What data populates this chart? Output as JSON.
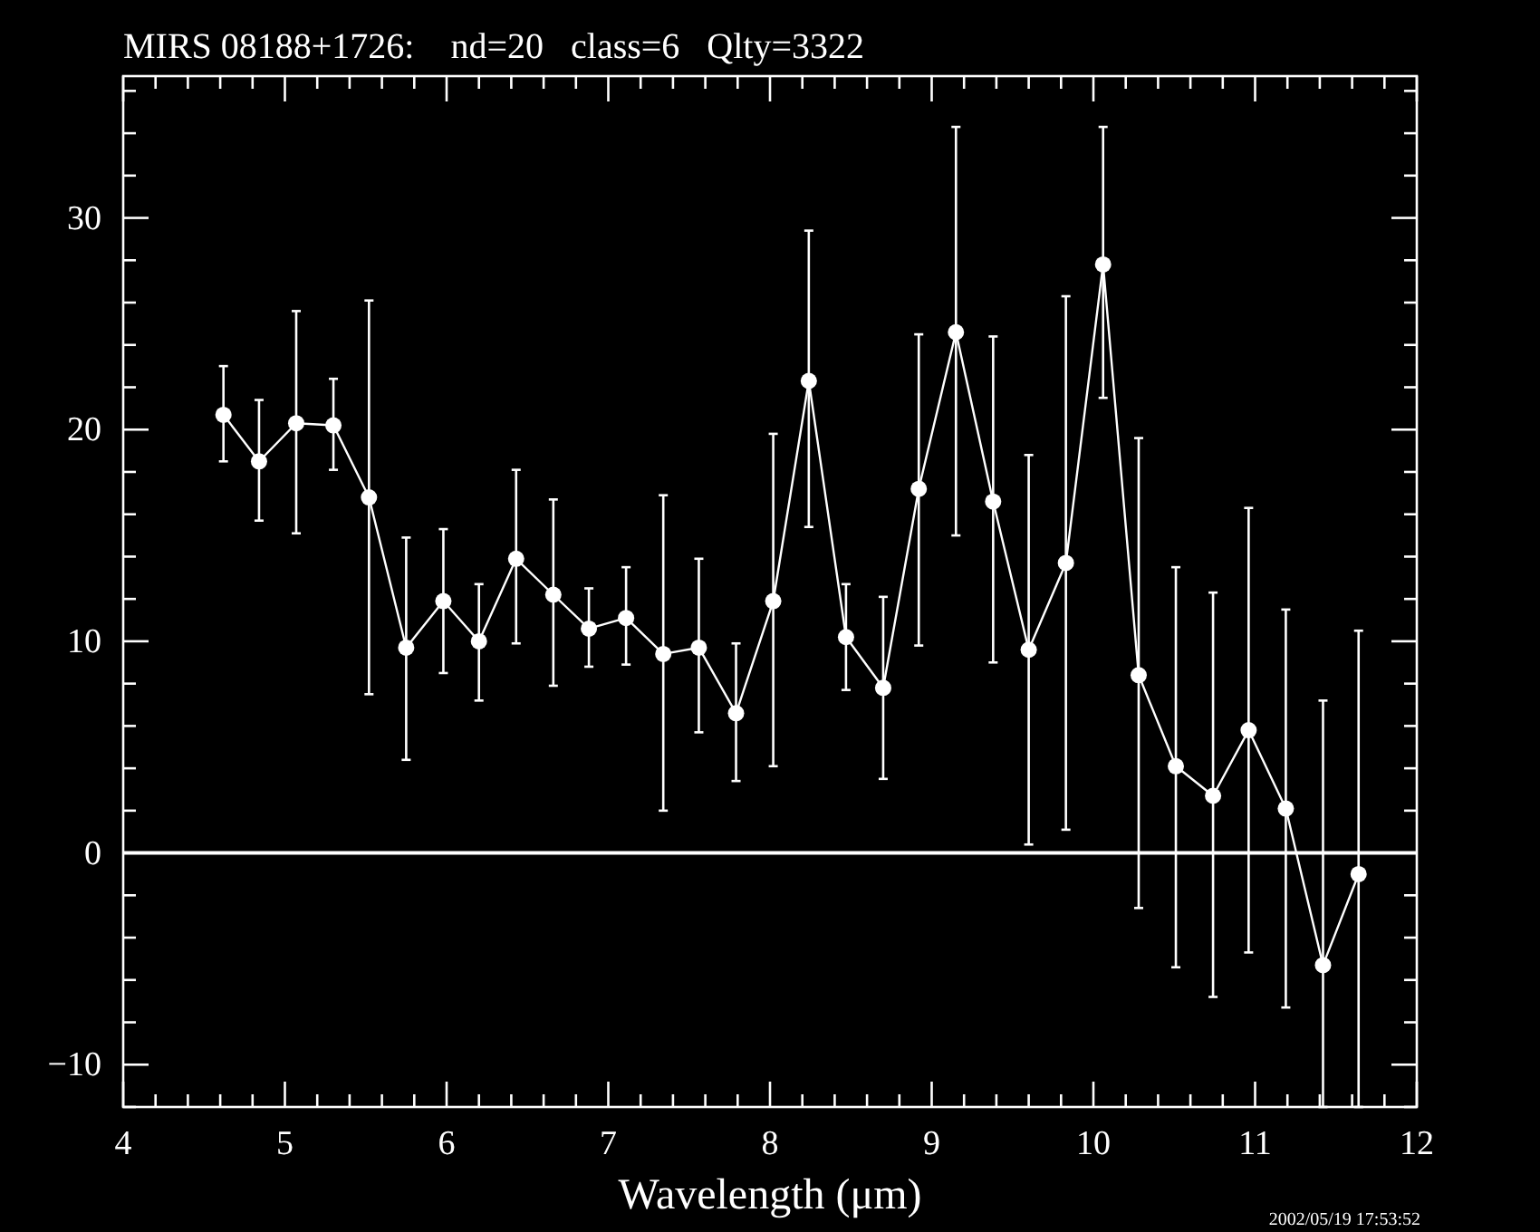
{
  "chart_data": {
    "type": "line",
    "title": "MIRS 08188+1726:    nd=20   class=6   Qlty=3322",
    "xlabel": "Wavelength (μm)",
    "x": [
      4.62,
      4.84,
      5.07,
      5.3,
      5.52,
      5.75,
      5.98,
      6.2,
      6.43,
      6.66,
      6.88,
      7.11,
      7.34,
      7.56,
      7.79,
      8.02,
      8.24,
      8.47,
      8.7,
      8.92,
      9.15,
      9.38,
      9.6,
      9.83,
      10.06,
      10.28,
      10.51,
      10.74,
      10.96,
      11.19,
      11.42,
      11.64
    ],
    "series": [
      {
        "color": "#ffffff",
        "values": [
          20.7,
          18.5,
          20.3,
          20.2,
          16.8,
          9.7,
          11.9,
          10.0,
          13.9,
          12.2,
          10.6,
          11.1,
          9.4,
          9.7,
          6.6,
          11.9,
          22.3,
          10.2,
          7.8,
          17.2,
          24.6,
          16.6,
          9.6,
          13.7,
          27.8,
          8.4,
          4.1,
          2.7,
          5.8,
          2.1,
          -5.3,
          -1.0
        ],
        "errors": [
          [
            18.5,
            23
          ],
          [
            15.7,
            21.4
          ],
          [
            15.1,
            25.6
          ],
          [
            18.1,
            22.4
          ],
          [
            7.5,
            26.1
          ],
          [
            4.4,
            14.9
          ],
          [
            8.5,
            15.3
          ],
          [
            7.2,
            12.7
          ],
          [
            9.9,
            18.1
          ],
          [
            7.9,
            16.7
          ],
          [
            8.8,
            12.5
          ],
          [
            8.9,
            13.5
          ],
          [
            2.0,
            16.9
          ],
          [
            5.7,
            13.9
          ],
          [
            3.4,
            9.9
          ],
          [
            4.1,
            19.8
          ],
          [
            15.4,
            29.4
          ],
          [
            7.7,
            12.7
          ],
          [
            3.5,
            12.1
          ],
          [
            9.8,
            24.5
          ],
          [
            15.0,
            34.3
          ],
          [
            9.0,
            24.4
          ],
          [
            0.4,
            18.8
          ],
          [
            1.1,
            26.3
          ],
          [
            21.5,
            34.3
          ],
          [
            -2.6,
            19.6
          ],
          [
            -5.4,
            13.5
          ],
          [
            -6.8,
            12.3
          ],
          [
            -4.7,
            16.3
          ],
          [
            -7.3,
            11.5
          ],
          [
            -12,
            7.2
          ],
          [
            -12,
            10.5
          ]
        ]
      }
    ],
    "marker": "circle",
    "line_style": "solid",
    "xlim": [
      4,
      12
    ],
    "ylim": [
      -12,
      36.7
    ],
    "xticks": [
      4,
      {
        "value": 4.2,
        "label": null
      },
      {
        "value": 4.4,
        "label": null
      },
      {
        "value": 4.6,
        "label": null
      },
      {
        "value": 4.8,
        "label": null
      },
      5,
      {
        "value": 5.2,
        "label": null
      },
      {
        "value": 5.4,
        "label": null
      },
      {
        "value": 5.6,
        "label": null
      },
      {
        "value": 5.8,
        "label": null
      },
      6,
      {
        "value": 6.2,
        "label": null
      },
      {
        "value": 6.4,
        "label": null
      },
      {
        "value": 6.6,
        "label": null
      },
      {
        "value": 6.8,
        "label": null
      },
      7,
      {
        "value": 7.2,
        "label": null
      },
      {
        "value": 7.4,
        "label": null
      },
      {
        "value": 7.6,
        "label": null
      },
      {
        "value": 7.8,
        "label": null
      },
      8,
      {
        "value": 8.2,
        "label": null
      },
      {
        "value": 8.4,
        "label": null
      },
      {
        "value": 8.6,
        "label": null
      },
      {
        "value": 8.8,
        "label": null
      },
      9,
      {
        "value": 9.2,
        "label": null
      },
      {
        "value": 9.4,
        "label": null
      },
      {
        "value": 9.6,
        "label": null
      },
      {
        "value": 9.8,
        "label": null
      },
      10,
      {
        "value": 10.2,
        "label": null
      },
      {
        "value": 10.4,
        "label": null
      },
      {
        "value": 10.6,
        "label": null
      },
      {
        "value": 10.8,
        "label": null
      },
      11,
      {
        "value": 11.2,
        "label": null
      },
      {
        "value": 11.4,
        "label": null
      },
      {
        "value": 11.6,
        "label": null
      },
      {
        "value": 11.8,
        "label": null
      },
      12
    ],
    "yticks": [
      {
        "value": -12,
        "label": null
      },
      {
        "value": -10,
        "label": "−10"
      },
      {
        "value": -8,
        "label": null
      },
      {
        "value": -6,
        "label": null
      },
      {
        "value": -4,
        "label": null
      },
      {
        "value": -2,
        "label": null
      },
      0,
      {
        "value": 2,
        "label": null
      },
      {
        "value": 4,
        "label": null
      },
      {
        "value": 6,
        "label": null
      },
      {
        "value": 8,
        "label": null
      },
      10,
      {
        "value": 12,
        "label": null
      },
      {
        "value": 14,
        "label": null
      },
      {
        "value": 16,
        "label": null
      },
      {
        "value": 18,
        "label": null
      },
      20,
      {
        "value": 22,
        "label": null
      },
      {
        "value": 24,
        "label": null
      },
      {
        "value": 26,
        "label": null
      },
      {
        "value": 28,
        "label": null
      },
      30,
      {
        "value": 32,
        "label": null
      },
      {
        "value": 34,
        "label": null
      },
      {
        "value": 36,
        "label": null
      }
    ],
    "ref_lines": [
      {
        "axis": "y",
        "value": 0,
        "color": "#ffffff"
      }
    ],
    "annotations": [
      "2002/05/19 17:53:52"
    ],
    "grid": false
  }
}
